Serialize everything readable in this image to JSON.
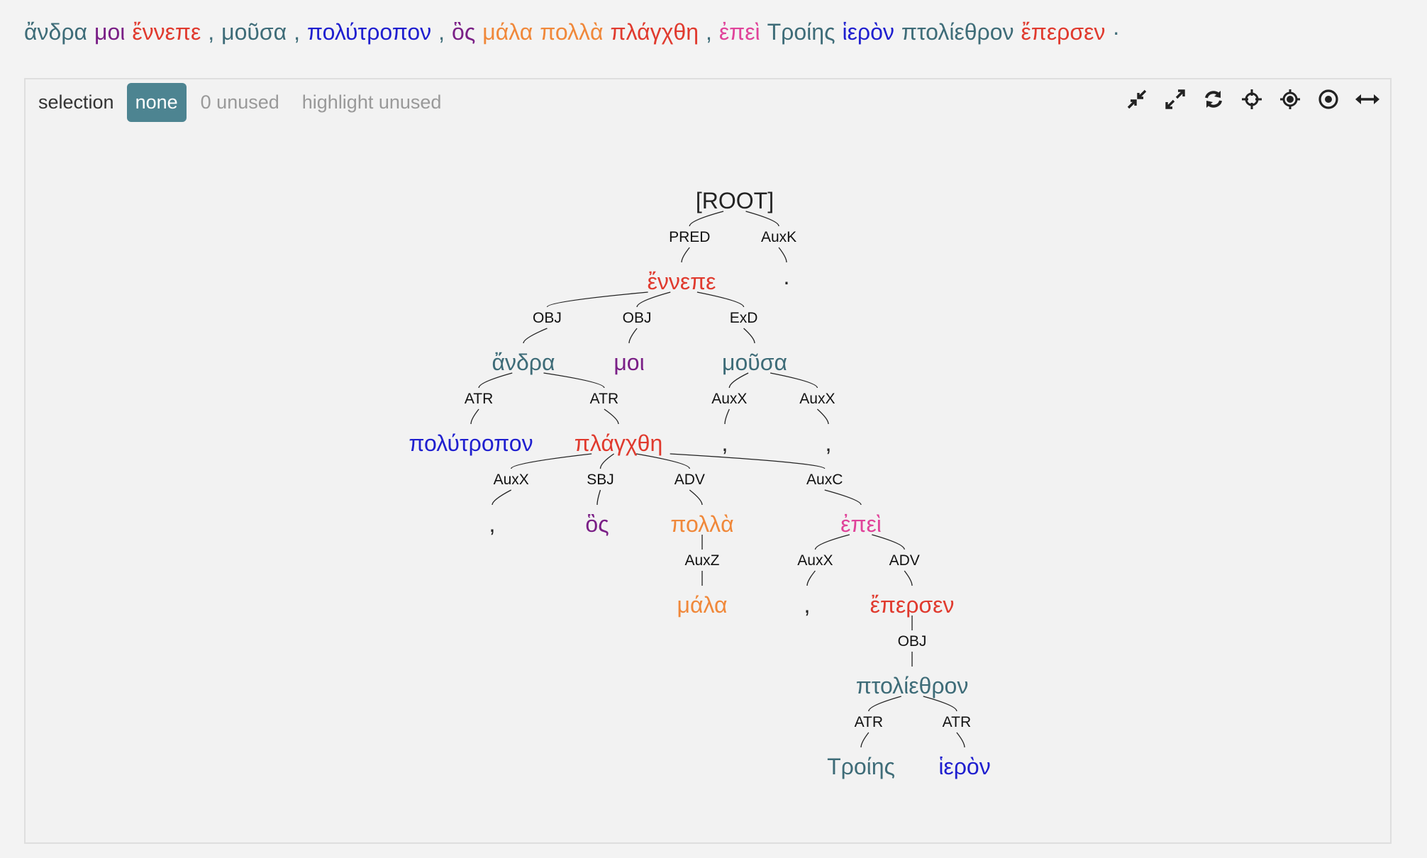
{
  "sentence": [
    {
      "text": "ἄνδρα",
      "color": "#3e6c78"
    },
    {
      "text": "μοι",
      "color": "#7a1f86"
    },
    {
      "text": "ἔννεπε",
      "color": "#e03a2e"
    },
    {
      "text": ",",
      "color": "#3e6c78"
    },
    {
      "text": "μοῦσα",
      "color": "#3e6c78"
    },
    {
      "text": ",",
      "color": "#3e6c78"
    },
    {
      "text": "πολύτροπον",
      "color": "#1f1fcf"
    },
    {
      "text": ",",
      "color": "#3e6c78"
    },
    {
      "text": "ὃς",
      "color": "#7a1f86"
    },
    {
      "text": "μάλα",
      "color": "#f0883a"
    },
    {
      "text": "πολλὰ",
      "color": "#f0883a"
    },
    {
      "text": "πλάγχθη",
      "color": "#e03a2e"
    },
    {
      "text": ",",
      "color": "#3e6c78"
    },
    {
      "text": "ἐπεὶ",
      "color": "#e0439a"
    },
    {
      "text": "Τροίης",
      "color": "#3e6c78"
    },
    {
      "text": "ἱερὸν",
      "color": "#1f1fcf"
    },
    {
      "text": "πτολίεθρον",
      "color": "#3e6c78"
    },
    {
      "text": "ἔπερσεν",
      "color": "#e03a2e"
    },
    {
      "text": "·",
      "color": "#3e6c78"
    }
  ],
  "selection": {
    "label": "selection",
    "none_label": "none",
    "unused_label": "0 unused",
    "highlight_label": "highlight unused"
  },
  "toolbar": [
    "compress-icon",
    "expand-icon",
    "refresh-icon",
    "center-icon",
    "focus-icon",
    "target-icon",
    "horizontal-expand-icon"
  ],
  "tree": {
    "root": "[ROOT]",
    "nodes": [
      {
        "id": "root",
        "word": "[ROOT]",
        "color": "#222222",
        "rel": "",
        "parent": ""
      },
      {
        "id": "n_ennepe",
        "word": "ἔννεπε",
        "color": "#e03a2e",
        "rel": "PRED",
        "parent": "root"
      },
      {
        "id": "n_stop",
        "word": "·",
        "color": "#222222",
        "rel": "AuxK",
        "parent": "root"
      },
      {
        "id": "n_andra",
        "word": "ἄνδρα",
        "color": "#3e6c78",
        "rel": "OBJ",
        "parent": "n_ennepe"
      },
      {
        "id": "n_moi",
        "word": "μοι",
        "color": "#7a1f86",
        "rel": "OBJ",
        "parent": "n_ennepe"
      },
      {
        "id": "n_mousa",
        "word": "μοῦσα",
        "color": "#3e6c78",
        "rel": "ExD",
        "parent": "n_ennepe"
      },
      {
        "id": "n_polytropon",
        "word": "πολύτροπον",
        "color": "#1f1fcf",
        "rel": "ATR",
        "parent": "n_andra"
      },
      {
        "id": "n_plangthe",
        "word": "πλάγχθη",
        "color": "#e03a2e",
        "rel": "ATR",
        "parent": "n_andra"
      },
      {
        "id": "n_comma1",
        "word": ",",
        "color": "#222222",
        "rel": "AuxX",
        "parent": "n_mousa"
      },
      {
        "id": "n_comma2",
        "word": ",",
        "color": "#222222",
        "rel": "AuxX",
        "parent": "n_mousa"
      },
      {
        "id": "n_comma3",
        "word": ",",
        "color": "#222222",
        "rel": "AuxX",
        "parent": "n_plangthe"
      },
      {
        "id": "n_hos",
        "word": "ὃς",
        "color": "#7a1f86",
        "rel": "SBJ",
        "parent": "n_plangthe"
      },
      {
        "id": "n_polla",
        "word": "πολλὰ",
        "color": "#f0883a",
        "rel": "ADV",
        "parent": "n_plangthe"
      },
      {
        "id": "n_epei",
        "word": "ἐπεὶ",
        "color": "#e0439a",
        "rel": "AuxC",
        "parent": "n_plangthe"
      },
      {
        "id": "n_mala",
        "word": "μάλα",
        "color": "#f0883a",
        "rel": "AuxZ",
        "parent": "n_polla"
      },
      {
        "id": "n_comma4",
        "word": ",",
        "color": "#222222",
        "rel": "AuxX",
        "parent": "n_epei"
      },
      {
        "id": "n_epersen",
        "word": "ἔπερσεν",
        "color": "#e03a2e",
        "rel": "ADV",
        "parent": "n_epei"
      },
      {
        "id": "n_ptoliethron",
        "word": "πτολίεθρον",
        "color": "#3e6c78",
        "rel": "OBJ",
        "parent": "n_epersen"
      },
      {
        "id": "n_troies",
        "word": "Τροίης",
        "color": "#3e6c78",
        "rel": "ATR",
        "parent": "n_ptoliethron"
      },
      {
        "id": "n_hieron",
        "word": "ἱερὸν",
        "color": "#1f1fcf",
        "rel": "ATR",
        "parent": "n_ptoliethron"
      }
    ]
  }
}
